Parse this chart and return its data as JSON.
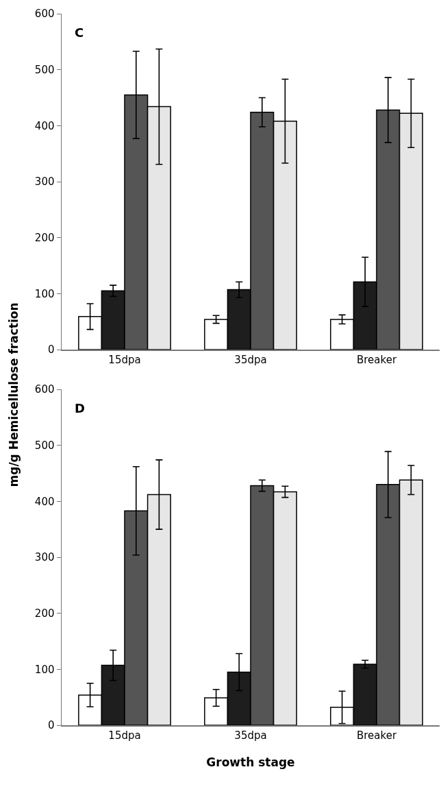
{
  "chart_data": [
    {
      "type": "bar",
      "title": "C",
      "ylabel": "mg/g Hemicellulose fraction",
      "categories": [
        "15dpa",
        "35dpa",
        "Breaker"
      ],
      "ylim": [
        0,
        600
      ],
      "yticks": [
        0,
        100,
        200,
        300,
        400,
        500,
        600
      ],
      "series": [
        {
          "color": "#ffffff",
          "values": [
            59,
            54,
            54
          ],
          "errors": [
            23,
            7,
            8
          ]
        },
        {
          "color": "#1e1e1e",
          "values": [
            105,
            107,
            121
          ],
          "errors": [
            10,
            14,
            44
          ]
        },
        {
          "color": "#555555",
          "values": [
            455,
            424,
            428
          ],
          "errors": [
            78,
            26,
            58
          ]
        },
        {
          "color": "#e6e6e6",
          "values": [
            434,
            408,
            422
          ],
          "errors": [
            103,
            75,
            61
          ]
        }
      ]
    },
    {
      "type": "bar",
      "title": "D",
      "xlabel": "Growth stage",
      "categories": [
        "15dpa",
        "35dpa",
        "Breaker"
      ],
      "ylim": [
        0,
        600
      ],
      "yticks": [
        0,
        100,
        200,
        300,
        400,
        500,
        600
      ],
      "series": [
        {
          "color": "#ffffff",
          "values": [
            54,
            49,
            32
          ],
          "errors": [
            21,
            15,
            29
          ]
        },
        {
          "color": "#1e1e1e",
          "values": [
            107,
            95,
            109
          ],
          "errors": [
            27,
            33,
            7
          ]
        },
        {
          "color": "#555555",
          "values": [
            383,
            428,
            430
          ],
          "errors": [
            79,
            10,
            59
          ]
        },
        {
          "color": "#e6e6e6",
          "values": [
            412,
            417,
            438
          ],
          "errors": [
            62,
            10,
            26
          ]
        }
      ]
    }
  ]
}
